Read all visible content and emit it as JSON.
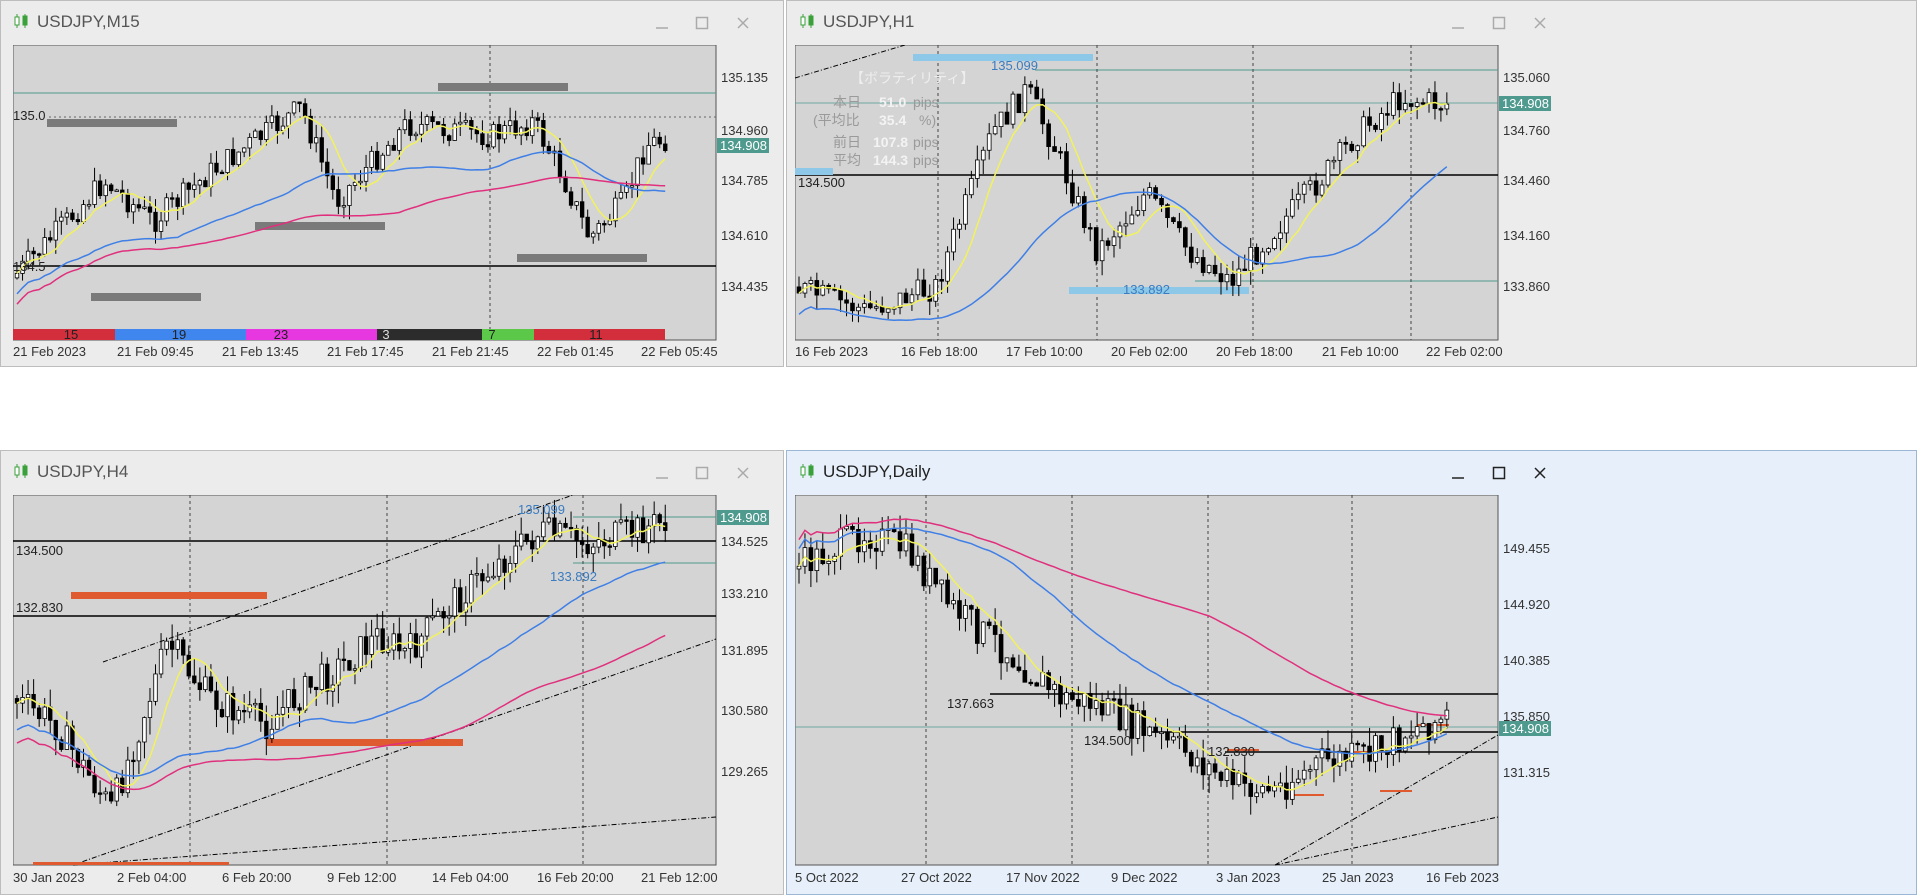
{
  "windows": [
    {
      "title": "USDJPY,M15",
      "active": false,
      "price_labels": [
        "135.135",
        "134.960",
        "134.785",
        "134.610",
        "134.435"
      ],
      "current_price": "134.908",
      "time_labels": [
        "21 Feb 2023",
        "21 Feb 09:45",
        "21 Feb 13:45",
        "21 Feb 17:45",
        "21 Feb 21:45",
        "22 Feb 01:45",
        "22 Feb 05:45"
      ],
      "level_labels": [
        "135.0",
        "134.5"
      ],
      "session_counts": [
        "15",
        "19",
        "23",
        "3",
        "7",
        "11"
      ]
    },
    {
      "title": "USDJPY,H1",
      "active": false,
      "price_labels": [
        "135.060",
        "134.760",
        "134.460",
        "134.160",
        "133.860"
      ],
      "current_price": "134.908",
      "time_labels": [
        "16 Feb 2023",
        "16 Feb 18:00",
        "17 Feb 10:00",
        "20 Feb 02:00",
        "20 Feb 18:00",
        "21 Feb 10:00",
        "22 Feb 02:00"
      ],
      "level_labels": [
        "135.099",
        "134.500",
        "133.892"
      ],
      "volatility": {
        "heading": "【ボラティリティ】",
        "rows": [
          {
            "label": "本日",
            "value": "51.0",
            "unit": "pips"
          },
          {
            "label": "(平均比",
            "value": "35.4",
            "unit": "%)"
          },
          {
            "label": "前日",
            "value": "107.8",
            "unit": "pips"
          },
          {
            "label": "平均",
            "value": "144.3",
            "unit": "pips"
          }
        ]
      }
    },
    {
      "title": "USDJPY,H4",
      "active": false,
      "price_labels": [
        "134.525",
        "133.210",
        "131.895",
        "130.580",
        "129.265"
      ],
      "current_price": "134.908",
      "time_labels": [
        "30 Jan 2023",
        "2 Feb 04:00",
        "6 Feb 20:00",
        "9 Feb 12:00",
        "14 Feb 04:00",
        "16 Feb 20:00",
        "21 Feb 12:00"
      ],
      "level_labels": [
        "135.099",
        "134.500",
        "133.892",
        "132.830"
      ]
    },
    {
      "title": "USDJPY,Daily",
      "active": true,
      "price_labels": [
        "149.455",
        "144.920",
        "140.385",
        "135.850",
        "131.315"
      ],
      "current_price": "134.908",
      "time_labels": [
        "5 Oct 2022",
        "27 Oct 2022",
        "17 Nov 2022",
        "9 Dec 2022",
        "3 Jan 2023",
        "25 Jan 2023",
        "16 Feb 2023"
      ],
      "level_labels": [
        "137.663",
        "134.500",
        "132.830"
      ]
    }
  ],
  "colors": {
    "plot_bg": "#d4d4d4",
    "bull": "#ffffff",
    "bear": "#000000",
    "ma_short": "#f2f25c",
    "ma_mid": "#3f7fe6",
    "ma_long": "#e0307d",
    "price_tag": "#4f9a8e",
    "session": [
      "#d22e3c",
      "#3f86ef",
      "#e637e0",
      "#2c2c2c",
      "#5cc84a",
      "#d22e3c"
    ]
  }
}
